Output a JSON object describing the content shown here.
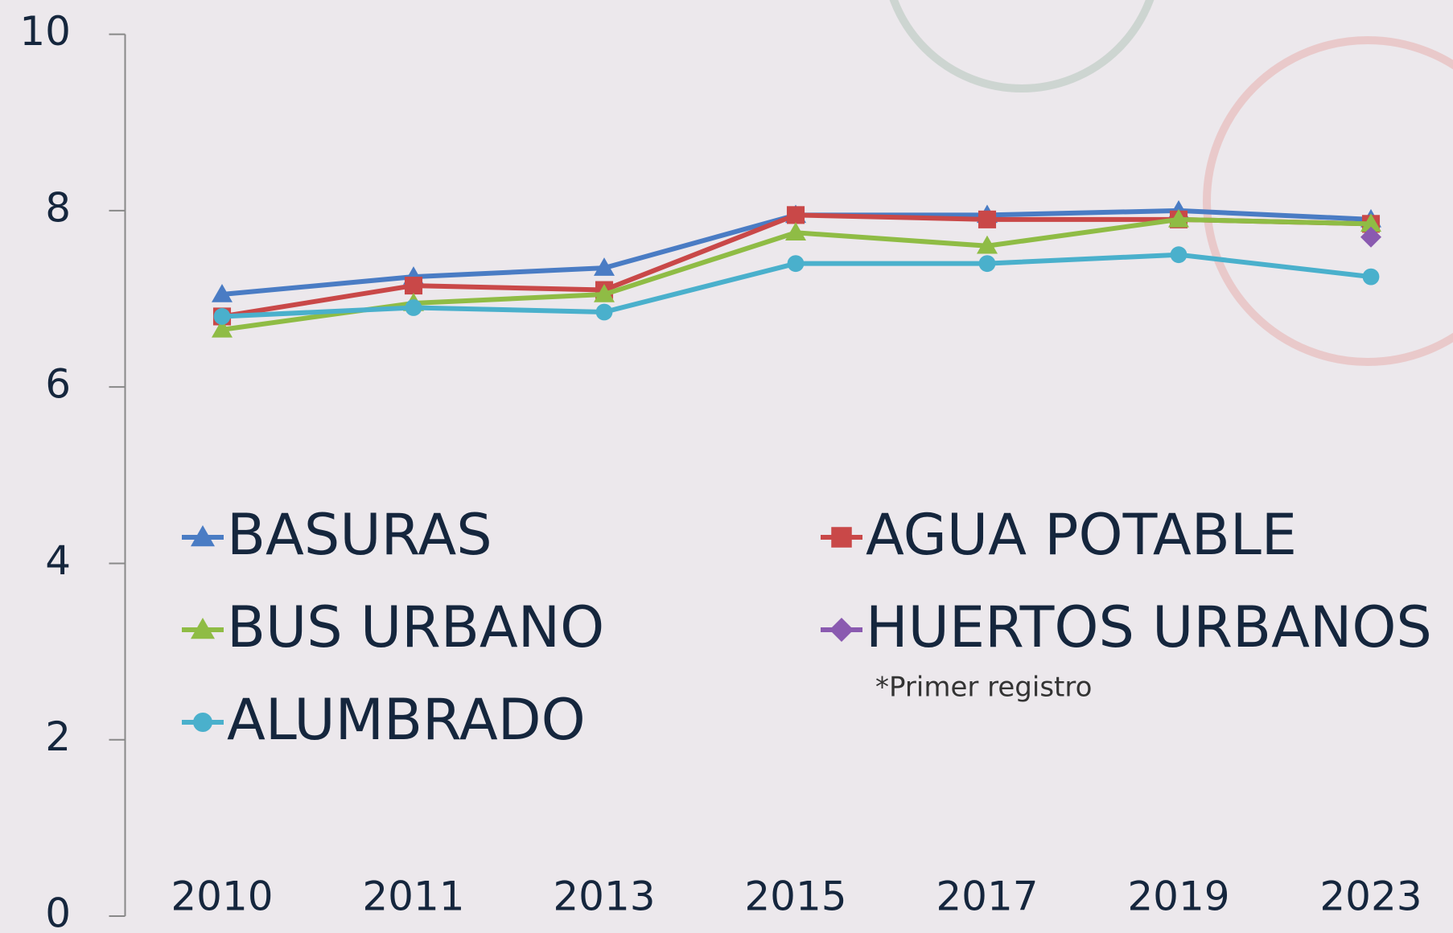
{
  "chart_data": {
    "type": "line",
    "categories": [
      "2010",
      "2011",
      "2013",
      "2015",
      "2017",
      "2019",
      "2023"
    ],
    "series": [
      {
        "name": "BASURAS",
        "color": "#4a7cc4",
        "marker": "triangle",
        "values": [
          7.05,
          7.25,
          7.35,
          7.95,
          7.95,
          8.0,
          7.9
        ]
      },
      {
        "name": "AGUA POTABLE",
        "color": "#c94848",
        "marker": "square",
        "values": [
          6.8,
          7.15,
          7.1,
          7.95,
          7.9,
          7.9,
          7.85
        ]
      },
      {
        "name": "BUS URBANO",
        "color": "#8fbc45",
        "marker": "triangle",
        "values": [
          6.65,
          6.95,
          7.05,
          7.75,
          7.6,
          7.9,
          7.85
        ]
      },
      {
        "name": "HUERTOS URBANOS",
        "color": "#8a5ab0",
        "marker": "diamond",
        "values": [
          null,
          null,
          null,
          null,
          null,
          null,
          7.7
        ]
      },
      {
        "name": "ALUMBRADO",
        "color": "#4ab0cc",
        "marker": "circle",
        "values": [
          6.8,
          6.9,
          6.85,
          7.4,
          7.4,
          7.5,
          7.25
        ]
      }
    ],
    "annotation": "*Primer registro",
    "ylim": [
      0,
      10
    ],
    "yticks": [
      0,
      2,
      4,
      6,
      8,
      10
    ]
  }
}
